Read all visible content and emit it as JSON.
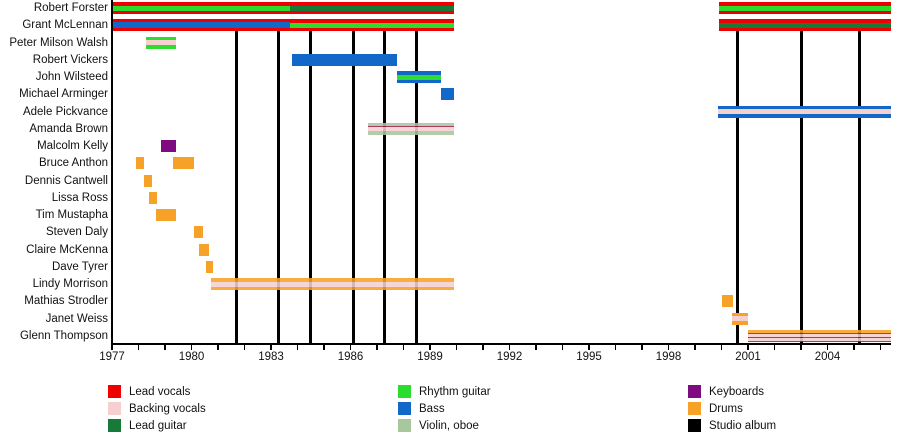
{
  "chart_data": {
    "type": "timeline",
    "title": "",
    "x_axis": {
      "start_year": 1977,
      "end_year": 2006.4,
      "minor_tick_interval": 1,
      "major_tick_years": [
        1977,
        1980,
        1983,
        1986,
        1989,
        1992,
        1995,
        1998,
        2001,
        2004
      ]
    },
    "colors": {
      "lead_vocals": "#ee0000",
      "backing_vocals": "#f6cfd0",
      "lead_guitar": "#167a38",
      "rhythm_guitar": "#2ddd2d",
      "bass": "#1268c8",
      "violin_oboe": "#a6c89c",
      "keyboards": "#7f0c7f",
      "drums": "#f6a228",
      "studio_album": "#000000",
      "pink_border": "#9c2246"
    },
    "legend": [
      {
        "label": "Lead vocals",
        "role": "lead_vocals"
      },
      {
        "label": "Backing vocals",
        "role": "backing_vocals"
      },
      {
        "label": "Lead guitar",
        "role": "lead_guitar"
      },
      {
        "label": "Rhythm guitar",
        "role": "rhythm_guitar"
      },
      {
        "label": "Bass",
        "role": "bass"
      },
      {
        "label": "Violin, oboe",
        "role": "violin_oboe"
      },
      {
        "label": "Keyboards",
        "role": "keyboards"
      },
      {
        "label": "Drums",
        "role": "drums"
      },
      {
        "label": "Studio album",
        "role": "studio_album"
      }
    ],
    "studio_album_years": [
      1981.7,
      1983.3,
      1984.5,
      1986.1,
      1987.3,
      1988.5,
      2000.6,
      2003.0,
      2005.2
    ],
    "members": [
      {
        "name": "Robert Forster",
        "segments": [
          {
            "start": 1977.0,
            "end": 1983.7,
            "stripes": [
              {
                "role": "lead_vocals",
                "w": 3.5
              },
              {
                "role": "rhythm_guitar",
                "w": 5
              },
              {
                "role": "lead_vocals",
                "w": 3.5
              }
            ]
          },
          {
            "start": 1983.7,
            "end": 1989.9,
            "stripes": [
              {
                "role": "lead_vocals",
                "w": 3.5
              },
              {
                "role": "lead_guitar",
                "w": 5
              },
              {
                "role": "lead_vocals",
                "w": 3.5
              }
            ]
          },
          {
            "start": 1999.9,
            "end": 2006.4,
            "stripes": [
              {
                "role": "lead_vocals",
                "w": 3.5
              },
              {
                "role": "rhythm_guitar",
                "w": 5
              },
              {
                "role": "lead_vocals",
                "w": 3.5
              }
            ]
          }
        ]
      },
      {
        "name": "Grant McLennan",
        "segments": [
          {
            "start": 1977.0,
            "end": 1983.7,
            "stripes": [
              {
                "role": "lead_vocals",
                "w": 3
              },
              {
                "role": "bass",
                "w": 6
              },
              {
                "role": "lead_vocals",
                "w": 3
              }
            ]
          },
          {
            "start": 1983.7,
            "end": 1989.9,
            "stripes": [
              {
                "role": "lead_vocals",
                "w": 3.5
              },
              {
                "role": "rhythm_guitar",
                "w": 5
              },
              {
                "role": "lead_vocals",
                "w": 3.5
              }
            ]
          },
          {
            "start": 1999.9,
            "end": 2006.4,
            "stripes": [
              {
                "role": "lead_vocals",
                "w": 3.5
              },
              {
                "role": "lead_guitar",
                "w": 5
              },
              {
                "role": "lead_vocals",
                "w": 3.5
              }
            ]
          }
        ]
      },
      {
        "name": "Peter Milson Walsh",
        "segments": [
          {
            "start": 1978.3,
            "end": 1979.4,
            "stripes": [
              {
                "role": "rhythm_guitar",
                "w": 4
              },
              {
                "role": "backing_vocals",
                "w": 4.5
              },
              {
                "role": "rhythm_guitar",
                "w": 4
              }
            ]
          }
        ]
      },
      {
        "name": "Robert Vickers",
        "segments": [
          {
            "start": 1983.8,
            "end": 1987.75,
            "stripes": [
              {
                "role": "bass",
                "w": 1
              }
            ]
          }
        ]
      },
      {
        "name": "John Wilsteed",
        "segments": [
          {
            "start": 1987.75,
            "end": 1989.4,
            "stripes": [
              {
                "role": "bass",
                "w": 3.5
              },
              {
                "role": "rhythm_guitar",
                "w": 5
              },
              {
                "role": "bass",
                "w": 3.5
              }
            ]
          }
        ]
      },
      {
        "name": "Michael Arminger",
        "segments": [
          {
            "start": 1989.4,
            "end": 1989.9,
            "stripes": [
              {
                "role": "bass",
                "w": 1
              }
            ]
          }
        ]
      },
      {
        "name": "Adele Pickvance",
        "segments": [
          {
            "start": 1999.87,
            "end": 2006.4,
            "stripes": [
              {
                "role": "bass",
                "w": 3.5
              },
              {
                "role": "backing_vocals",
                "w": 5
              },
              {
                "role": "bass",
                "w": 3.5
              }
            ]
          }
        ]
      },
      {
        "name": "Amanda Brown",
        "segments": [
          {
            "start": 1986.65,
            "end": 1989.9,
            "pale": true,
            "stripes": [
              {
                "role": "violin_oboe",
                "w": 3.5
              },
              {
                "role": "pink_border",
                "w": 0.8
              },
              {
                "role": "backing_vocals",
                "w": 3.5
              },
              {
                "role": "pink_border",
                "w": 0.8
              },
              {
                "role": "violin_oboe",
                "w": 3.5
              }
            ]
          }
        ]
      },
      {
        "name": "Malcolm Kelly",
        "segments": [
          {
            "start": 1978.85,
            "end": 1979.4,
            "stripes": [
              {
                "role": "keyboards",
                "w": 1
              }
            ]
          }
        ]
      },
      {
        "name": "Bruce Anthon",
        "segments": [
          {
            "start": 1977.9,
            "end": 1978.2,
            "stripes": [
              {
                "role": "drums",
                "w": 1
              }
            ]
          },
          {
            "start": 1979.3,
            "end": 1980.1,
            "stripes": [
              {
                "role": "drums",
                "w": 1
              }
            ]
          }
        ]
      },
      {
        "name": "Dennis Cantwell",
        "segments": [
          {
            "start": 1978.2,
            "end": 1978.5,
            "stripes": [
              {
                "role": "drums",
                "w": 1
              }
            ]
          }
        ]
      },
      {
        "name": "Lissa Ross",
        "segments": [
          {
            "start": 1978.4,
            "end": 1978.7,
            "stripes": [
              {
                "role": "drums",
                "w": 1
              }
            ]
          }
        ]
      },
      {
        "name": "Tim Mustapha",
        "segments": [
          {
            "start": 1978.65,
            "end": 1979.4,
            "stripes": [
              {
                "role": "drums",
                "w": 1
              }
            ]
          }
        ]
      },
      {
        "name": "Steven Daly",
        "segments": [
          {
            "start": 1980.1,
            "end": 1980.45,
            "stripes": [
              {
                "role": "drums",
                "w": 1
              }
            ]
          }
        ]
      },
      {
        "name": "Claire McKenna",
        "segments": [
          {
            "start": 1980.3,
            "end": 1980.65,
            "stripes": [
              {
                "role": "drums",
                "w": 1
              }
            ]
          }
        ]
      },
      {
        "name": "Dave Tyrer",
        "segments": [
          {
            "start": 1980.55,
            "end": 1980.8,
            "stripes": [
              {
                "role": "drums",
                "w": 1
              }
            ]
          }
        ]
      },
      {
        "name": "Lindy Morrison",
        "segments": [
          {
            "start": 1980.75,
            "end": 1989.9,
            "pale": true,
            "stripes": [
              {
                "role": "drums",
                "w": 3.5
              },
              {
                "role": "backing_vocals",
                "w": 5
              },
              {
                "role": "drums",
                "w": 3.5
              }
            ]
          }
        ]
      },
      {
        "name": "Mathias Strodler",
        "segments": [
          {
            "start": 2000.0,
            "end": 2000.45,
            "stripes": [
              {
                "role": "drums",
                "w": 1
              }
            ]
          }
        ]
      },
      {
        "name": "Janet Weiss",
        "segments": [
          {
            "start": 2000.4,
            "end": 2001.0,
            "stripes": [
              {
                "role": "drums",
                "w": 3.5
              },
              {
                "role": "backing_vocals",
                "w": 5
              },
              {
                "role": "drums",
                "w": 3.5
              }
            ]
          }
        ]
      },
      {
        "name": "Glenn Thompson",
        "segments": [
          {
            "start": 2001.0,
            "end": 2006.4,
            "pale": true,
            "stripes": [
              {
                "role": "drums",
                "w": 2.5
              },
              {
                "role": "pink_border",
                "w": 1.3
              },
              {
                "role": "backing_vocals",
                "w": 3
              },
              {
                "role": "pink_border",
                "w": 1.3
              },
              {
                "role": "backing_vocals",
                "w": 2
              },
              {
                "role": "pink_border",
                "w": 1.3
              }
            ]
          }
        ]
      }
    ]
  }
}
